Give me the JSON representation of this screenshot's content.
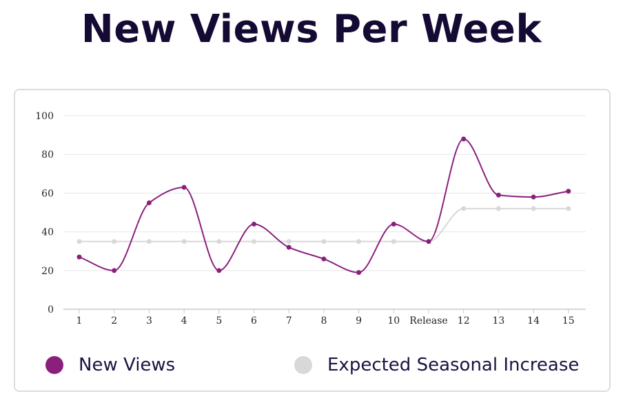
{
  "title": "New Views Per Week",
  "chart_data": {
    "type": "line",
    "title": "New Views Per Week",
    "xlabel": "",
    "ylabel": "",
    "categories": [
      "1",
      "2",
      "3",
      "4",
      "5",
      "6",
      "7",
      "8",
      "9",
      "10",
      "Release",
      "12",
      "13",
      "14",
      "15"
    ],
    "ylim": [
      0,
      100
    ],
    "yticks": [
      0,
      20,
      40,
      60,
      80,
      100
    ],
    "grid": true,
    "legend_position": "bottom",
    "smooth": true,
    "series": [
      {
        "name": "New Views",
        "color": "#8a1f7c",
        "values": [
          27,
          20,
          55,
          63,
          20,
          44,
          32,
          26,
          19,
          44,
          35,
          88,
          59,
          58,
          61
        ]
      },
      {
        "name": "Expected Seasonal Increase",
        "color": "#d8d8d8",
        "values": [
          35,
          35,
          35,
          35,
          35,
          35,
          35,
          35,
          35,
          35,
          35,
          52,
          52,
          52,
          52
        ]
      }
    ]
  }
}
